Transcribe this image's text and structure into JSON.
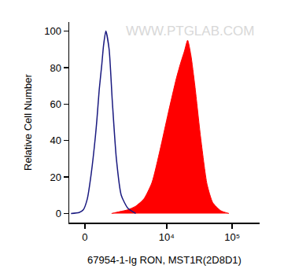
{
  "chart_data": {
    "type": "histogram",
    "x_label": "67954-1-Ig RON, MST1R(2D8D1)",
    "y_label": "Relative Cell Number",
    "annotations": [
      "WWW.PTGLAB.COM"
    ],
    "log": "x",
    "xlim": [
      -650,
      262144
    ],
    "xticks": [
      0,
      {
        "value": 10000,
        "label": "10⁴"
      },
      {
        "value": 100000,
        "label": "10⁵"
      }
    ],
    "ylim": [
      -5,
      105
    ],
    "yticks": [
      0,
      20,
      40,
      60,
      80,
      100
    ],
    "grid": false,
    "series": [
      {
        "type": "line",
        "color": "#1a1a80",
        "x": [
          -570,
          -230,
          -60,
          100,
          260,
          430,
          500,
          600,
          720,
          800,
          915,
          1090,
          1270,
          1530,
          1880,
          2430,
          3290
        ],
        "values": [
          0,
          0.5,
          2,
          8,
          22,
          42,
          52,
          68,
          82,
          92,
          100,
          90,
          62,
          30,
          10,
          3,
          0
        ]
      },
      {
        "type": "area",
        "color": "#ff0000",
        "x": [
          1230,
          1760,
          2430,
          3290,
          4440,
          5940,
          7930,
          10560,
          14050,
          16200,
          18670,
          20930,
          23450,
          27030,
          33000,
          41420,
          50590,
          67220,
          89280
        ],
        "values": [
          0,
          1,
          2,
          4,
          8,
          17,
          35,
          55,
          74,
          82,
          89,
          95,
          87,
          70,
          42,
          16,
          6,
          1.5,
          0
        ]
      }
    ]
  }
}
